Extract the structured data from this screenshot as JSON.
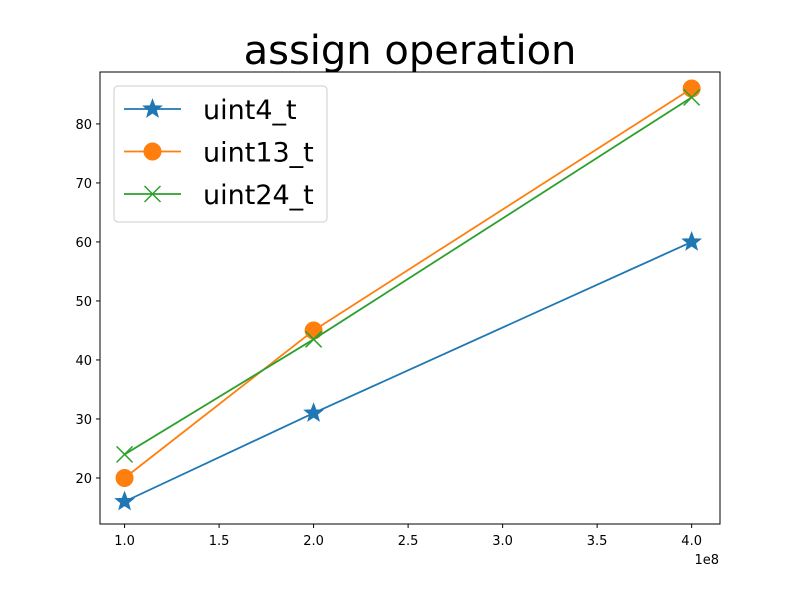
{
  "chart_data": {
    "type": "line",
    "title": "assign operation",
    "xlabel": "",
    "ylabel": "",
    "x_offset_label": "1e8",
    "x": [
      1.0,
      2.0,
      4.0
    ],
    "xlim": [
      0.87,
      4.15
    ],
    "ylim": [
      12.2,
      88.8
    ],
    "xticks": [
      1.0,
      1.5,
      2.0,
      2.5,
      3.0,
      3.5,
      4.0
    ],
    "xtick_labels": [
      "1.0",
      "1.5",
      "2.0",
      "2.5",
      "3.0",
      "3.5",
      "4.0"
    ],
    "yticks": [
      20,
      30,
      40,
      50,
      60,
      70,
      80
    ],
    "ytick_labels": [
      "20",
      "30",
      "40",
      "50",
      "60",
      "70",
      "80"
    ],
    "grid": false,
    "legend_position": "top-left",
    "series": [
      {
        "name": "uint4_t",
        "marker": "star",
        "color": "#1f77b4",
        "values": [
          16,
          31,
          60
        ]
      },
      {
        "name": "uint13_t",
        "marker": "circle",
        "color": "#ff7f0e",
        "values": [
          20,
          45,
          86
        ]
      },
      {
        "name": "uint24_t",
        "marker": "x",
        "color": "#2ca02c",
        "values": [
          24,
          43.5,
          84.5
        ]
      }
    ]
  }
}
